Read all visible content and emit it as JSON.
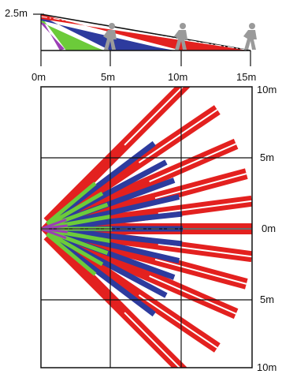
{
  "side_view": {
    "height_label": "2.5m",
    "distance_labels": [
      "0m",
      "5m",
      "10m",
      "15m"
    ],
    "beams": [
      {
        "color": "#9b3fb5",
        "range_m": 2.5
      },
      {
        "color": "#6ccb3a",
        "range_m": 6
      },
      {
        "color": "#2d3b9e",
        "range_m": 12
      },
      {
        "color": "#e3211f",
        "range_m": 15
      }
    ],
    "person_icon_positions_m": [
      5,
      10,
      15
    ]
  },
  "top_view": {
    "right_labels": [
      "10m",
      "5m",
      "0m",
      "5m",
      "10m"
    ],
    "bottom_label": "10m",
    "colors": {
      "red": "#e3211f",
      "blue": "#2d3b9e",
      "green": "#6ccb3a",
      "purple": "#9b3fb5"
    },
    "red_fan_angles_deg": [
      -45,
      -34,
      -23.5,
      -15,
      -7.5,
      0,
      7.5,
      15,
      23.5,
      34,
      45
    ],
    "blue_fan_angles_deg": [
      -37,
      -28,
      -20,
      -13,
      -6,
      0,
      6,
      13,
      20,
      28,
      37
    ]
  }
}
